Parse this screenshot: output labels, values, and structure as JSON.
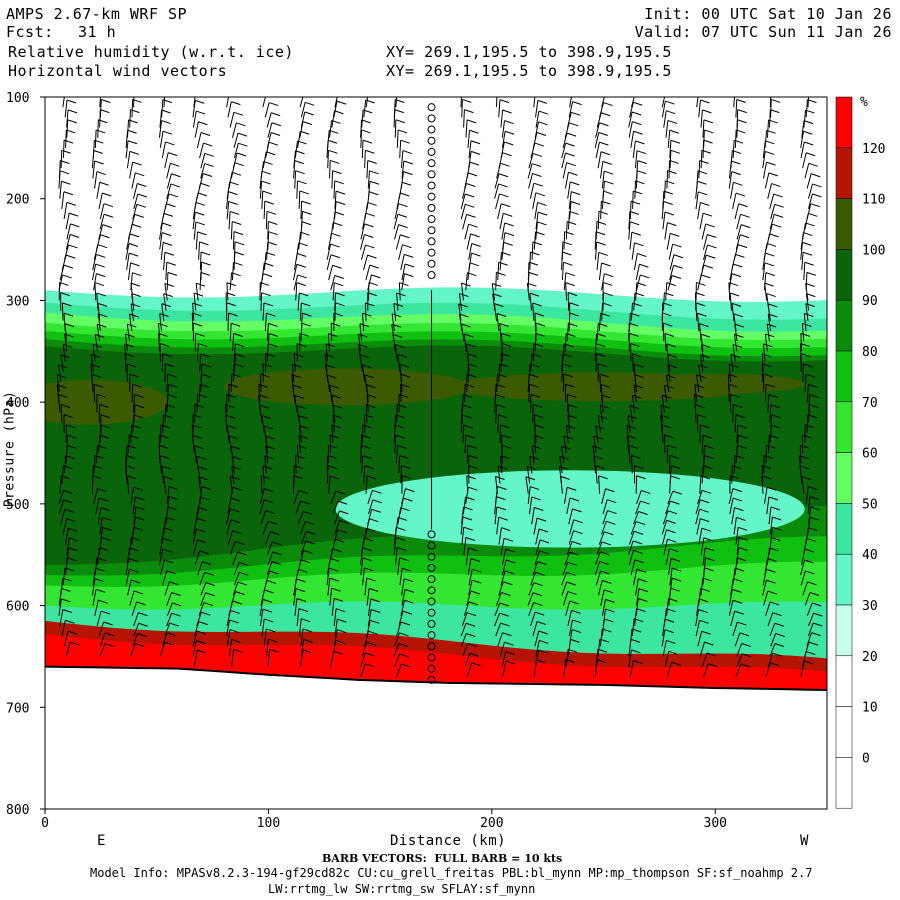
{
  "header": {
    "model": "AMPS 2.67-km WRF SP",
    "fcst_label": "Fcst:",
    "fcst_value": "31 h",
    "field1": "Relative humidity (w.r.t. ice)",
    "field2": "Horizontal wind vectors",
    "xy1": "XY= 269.1,195.5 to 398.9,195.5",
    "xy2": "XY= 269.1,195.5 to 398.9,195.5",
    "init": "Init: 00 UTC Sat 10 Jan 26",
    "valid": "Valid: 07 UTC Sun 11 Jan 26"
  },
  "footer": {
    "barb_note": "BARB VECTORS:  FULL BARB = 10 kts",
    "model_info": "Model Info: MPASv8.2.3-194-gf29cd82c CU:cu_grell_freitas PBL:bl_mynn MP:mp_thompson SF:sf_noahmp 2.7",
    "physics": "LW:rrtmg_lw SW:rrtmg_sw SFLAY:sf_mynn"
  },
  "chart_data": {
    "type": "heatmap",
    "title": "Relative humidity (w.r.t. ice) and horizontal wind vectors",
    "xlabel": "Distance (km)",
    "ylabel": "Pressure (hPa)",
    "xlim": [
      0,
      350
    ],
    "ylim": [
      800,
      100
    ],
    "x_ticks": [
      0,
      100,
      200,
      300
    ],
    "y_ticks": [
      100,
      200,
      300,
      400,
      500,
      600,
      700,
      800
    ],
    "x_end_labels": {
      "left": "E",
      "right": "W"
    },
    "colorbar": {
      "unit": "%",
      "levels": [
        0,
        10,
        20,
        30,
        40,
        50,
        60,
        70,
        80,
        90,
        100,
        110,
        120
      ],
      "colors": [
        "#ffffff",
        "#ffffff",
        "#ffffff",
        "#c8ffee",
        "#64f5c8",
        "#3ce6a0",
        "#64ff64",
        "#32e632",
        "#10c010",
        "#0a8c0a",
        "#0a640a",
        "#3c5a00",
        "#b41400",
        "#ff0000"
      ]
    },
    "rh_bands": [
      {
        "level": 30,
        "left": 290,
        "right": 296
      },
      {
        "level": 40,
        "left": 302,
        "right": 314
      },
      {
        "level": 50,
        "left": 312,
        "right": 326
      },
      {
        "level": 60,
        "left": 322,
        "right": 334
      },
      {
        "level": 70,
        "left": 330,
        "right": 342
      },
      {
        "level": 80,
        "left": 338,
        "right": 350
      },
      {
        "level": 90,
        "left": 345,
        "right": 355
      }
    ],
    "rh_lower_bands": [
      {
        "level": 90,
        "left": 520,
        "right": 470
      },
      {
        "level": 80,
        "left": 560,
        "right": 505
      },
      {
        "level": 70,
        "left": 570,
        "right": 535
      },
      {
        "level": 60,
        "left": 580,
        "right": 560
      },
      {
        "level": 40,
        "left": 600,
        "right": 600
      },
      {
        "level": 110,
        "left": 615,
        "right": 655
      },
      {
        "level": 120,
        "left": 628,
        "right": 668
      }
    ],
    "dry_pocket": {
      "center_km": 235,
      "center_hpa": 505,
      "half_width_km": 105,
      "half_depth_hpa": 38
    },
    "terrain_hpa": [
      {
        "km": 0,
        "p": 660
      },
      {
        "km": 60,
        "p": 662
      },
      {
        "km": 100,
        "p": 668
      },
      {
        "km": 140,
        "p": 673
      },
      {
        "km": 180,
        "p": 676
      },
      {
        "km": 250,
        "p": 678
      },
      {
        "km": 300,
        "p": 681
      },
      {
        "km": 350,
        "p": 683
      }
    ],
    "calm_column_km": 173,
    "calm_upper_hpa": [
      110,
      280
    ],
    "calm_lower_hpa": [
      530,
      676
    ],
    "barb_columns_km": [
      8,
      23,
      38,
      53,
      68,
      83,
      98,
      113,
      128,
      143,
      158,
      188,
      203,
      218,
      233,
      248,
      263,
      278,
      293,
      308,
      323,
      340
    ]
  }
}
